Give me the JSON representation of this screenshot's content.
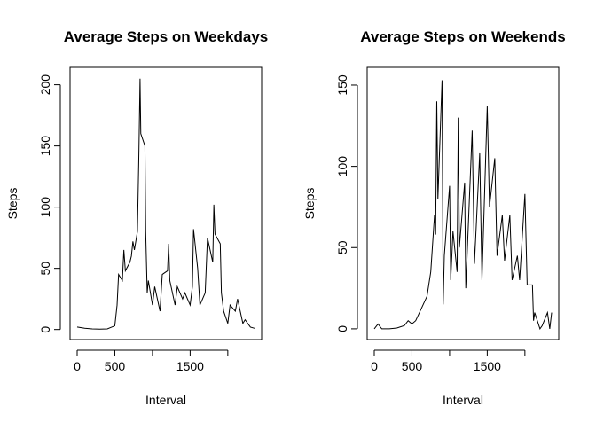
{
  "chart_data": [
    {
      "type": "line",
      "title": "Average Steps on Weekdays",
      "xlabel": "Interval",
      "ylabel": "Steps",
      "color": "#000000",
      "x": [
        0,
        100,
        200,
        300,
        400,
        500,
        530,
        550,
        600,
        620,
        640,
        700,
        720,
        740,
        760,
        800,
        820,
        835,
        845,
        900,
        910,
        930,
        945,
        1000,
        1030,
        1100,
        1130,
        1200,
        1215,
        1230,
        1300,
        1330,
        1400,
        1430,
        1500,
        1530,
        1545,
        1600,
        1630,
        1700,
        1730,
        1800,
        1815,
        1830,
        1900,
        1915,
        1945,
        2000,
        2030,
        2100,
        2130,
        2200,
        2230,
        2300,
        2355
      ],
      "values": [
        2,
        1,
        0.5,
        0.3,
        0.5,
        3,
        20,
        45,
        40,
        65,
        48,
        55,
        60,
        72,
        65,
        80,
        145,
        205,
        160,
        150,
        80,
        30,
        40,
        20,
        35,
        15,
        45,
        48,
        70,
        40,
        20,
        35,
        25,
        30,
        20,
        35,
        82,
        50,
        20,
        30,
        75,
        55,
        102,
        78,
        70,
        30,
        15,
        5,
        20,
        15,
        25,
        5,
        8,
        2,
        1
      ],
      "xlim": [
        -94.2,
        2449.2
      ],
      "ylim": [
        -8.2,
        214.2
      ],
      "xticks": [
        0,
        500,
        {
          "value": 1000,
          "label": null
        },
        1500,
        {
          "value": 2000,
          "label": null
        }
      ],
      "yticks": [
        0,
        50,
        100,
        150,
        200
      ]
    },
    {
      "type": "line",
      "title": "Average Steps on Weekends",
      "xlabel": "Interval",
      "ylabel": "Steps",
      "color": "#000000",
      "x": [
        0,
        50,
        100,
        200,
        300,
        400,
        450,
        500,
        550,
        600,
        650,
        700,
        750,
        800,
        815,
        830,
        845,
        900,
        915,
        930,
        1000,
        1015,
        1045,
        1100,
        1115,
        1130,
        1200,
        1215,
        1300,
        1330,
        1400,
        1430,
        1500,
        1530,
        1600,
        1630,
        1700,
        1730,
        1800,
        1830,
        1900,
        1930,
        2000,
        2030,
        2100,
        2115,
        2130,
        2200,
        2230,
        2300,
        2330,
        2355
      ],
      "values": [
        0,
        3,
        0,
        0,
        0.5,
        2,
        5,
        3,
        5,
        10,
        15,
        20,
        35,
        70,
        58,
        140,
        80,
        153,
        15,
        45,
        88,
        30,
        60,
        35,
        130,
        50,
        90,
        25,
        122,
        40,
        108,
        30,
        137,
        75,
        105,
        45,
        70,
        42,
        70,
        30,
        45,
        30,
        83,
        27,
        27,
        5,
        10,
        0,
        2,
        10,
        0,
        10
      ],
      "xlim": [
        -94.2,
        2449.2
      ],
      "ylim": [
        -6.6,
        160.9
      ],
      "xticks": [
        0,
        500,
        {
          "value": 1000,
          "label": null
        },
        1500,
        {
          "value": 2000,
          "label": null
        }
      ],
      "yticks": [
        0,
        50,
        100,
        150
      ]
    }
  ]
}
